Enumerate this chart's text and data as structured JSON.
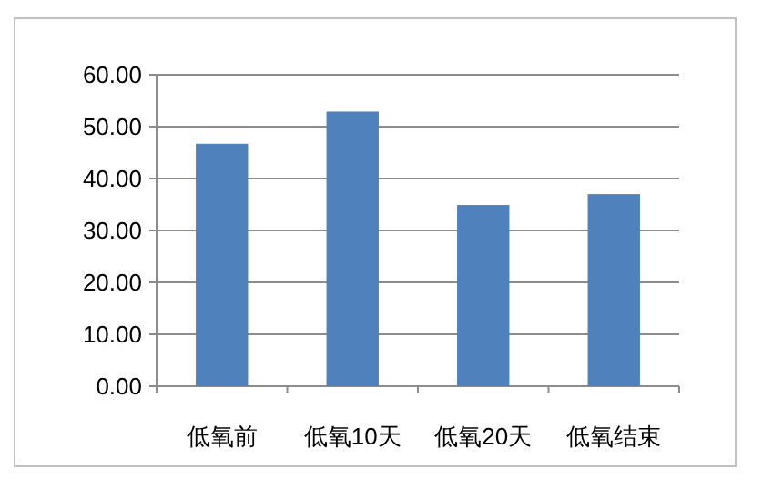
{
  "chart_data": {
    "type": "bar",
    "categories": [
      "低氧前",
      "低氧10天",
      "低氧20天",
      "低氧结束"
    ],
    "values": [
      46.7,
      52.9,
      34.9,
      37.0
    ],
    "color": "#4f81bd",
    "ylim": [
      0,
      60
    ],
    "yticks": [
      {
        "value": 0,
        "label": "0.00"
      },
      {
        "value": 10,
        "label": "10.00"
      },
      {
        "value": 20,
        "label": "20.00"
      },
      {
        "value": 30,
        "label": "30.00"
      },
      {
        "value": 40,
        "label": "40.00"
      },
      {
        "value": 50,
        "label": "50.00"
      },
      {
        "value": 60,
        "label": "60.00"
      }
    ],
    "grid": "y"
  }
}
